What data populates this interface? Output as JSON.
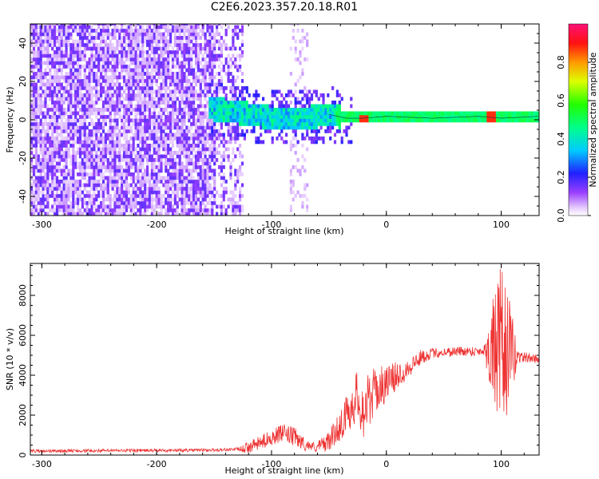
{
  "title": "C2E6.2023.357.20.18.R01",
  "chart_data": [
    {
      "type": "heatmap",
      "xlabel": "Height of straight line (km)",
      "ylabel": "Frequency (Hz)",
      "xlim": [
        -310,
        133
      ],
      "ylim": [
        -50,
        50
      ],
      "xticks": [
        -300,
        -200,
        -100,
        0,
        100
      ],
      "yticks": [
        -40,
        -20,
        0,
        20,
        40
      ],
      "colorbar": {
        "label": "Normalized spectral amplitude",
        "range": [
          0,
          1
        ],
        "ticks": [
          0.0,
          0.2,
          0.4,
          0.6,
          0.8
        ]
      },
      "features": {
        "noise_region_x": [
          -310,
          -125
        ],
        "sparse_band_x": [
          -85,
          -68
        ],
        "signal_track": [
          {
            "x": -155,
            "f": 5
          },
          {
            "x": -130,
            "f": 3
          },
          {
            "x": -100,
            "f": 0
          },
          {
            "x": -70,
            "f": 0
          },
          {
            "x": -50,
            "f": 2
          },
          {
            "x": -35,
            "f": 0
          },
          {
            "x": -20,
            "f": 0
          },
          {
            "x": 0,
            "f": 1
          },
          {
            "x": 40,
            "f": 0
          },
          {
            "x": 80,
            "f": 1
          },
          {
            "x": 100,
            "f": 0
          },
          {
            "x": 133,
            "f": 1
          }
        ],
        "hot_spots": [
          {
            "x": -20,
            "f": 0
          },
          {
            "x": 90,
            "f": 1
          }
        ]
      }
    },
    {
      "type": "line",
      "xlabel": "Height of straight line (km)",
      "ylabel": "SNR (10 * v/v)",
      "xlim": [
        -310,
        133
      ],
      "ylim": [
        0,
        9600
      ],
      "xticks": [
        -300,
        -200,
        -100,
        0,
        100
      ],
      "yticks": [
        0,
        2000,
        4000,
        6000,
        8000
      ],
      "color": "#ee3333",
      "series": [
        {
          "points": [
            [
              -310,
              200
            ],
            [
              -250,
              220
            ],
            [
              -200,
              230
            ],
            [
              -150,
              250
            ],
            [
              -125,
              300
            ],
            [
              -110,
              600
            ],
            [
              -100,
              900
            ],
            [
              -90,
              1100
            ],
            [
              -80,
              900
            ],
            [
              -70,
              500
            ],
            [
              -60,
              400
            ],
            [
              -50,
              700
            ],
            [
              -40,
              1500
            ],
            [
              -30,
              2500
            ],
            [
              -25,
              3000
            ],
            [
              -20,
              2200
            ],
            [
              -15,
              2800
            ],
            [
              -10,
              3200
            ],
            [
              0,
              3600
            ],
            [
              10,
              4000
            ],
            [
              20,
              4400
            ],
            [
              30,
              4900
            ],
            [
              40,
              5100
            ],
            [
              60,
              5200
            ],
            [
              80,
              5200
            ],
            [
              90,
              5300
            ],
            [
              95,
              5200
            ],
            [
              100,
              5000
            ],
            [
              105,
              5300
            ],
            [
              110,
              5000
            ],
            [
              120,
              4900
            ],
            [
              133,
              4800
            ]
          ],
          "noise_amplitude": [
            [
              -310,
              80
            ],
            [
              -130,
              80
            ],
            [
              -120,
              300
            ],
            [
              -80,
              500
            ],
            [
              -65,
              200
            ],
            [
              -45,
              600
            ],
            [
              -20,
              1500
            ],
            [
              0,
              900
            ],
            [
              20,
              500
            ],
            [
              40,
              250
            ],
            [
              85,
              250
            ],
            [
              92,
              2500
            ],
            [
              100,
              4500
            ],
            [
              108,
              2500
            ],
            [
              115,
              300
            ],
            [
              133,
              200
            ]
          ]
        }
      ]
    }
  ]
}
